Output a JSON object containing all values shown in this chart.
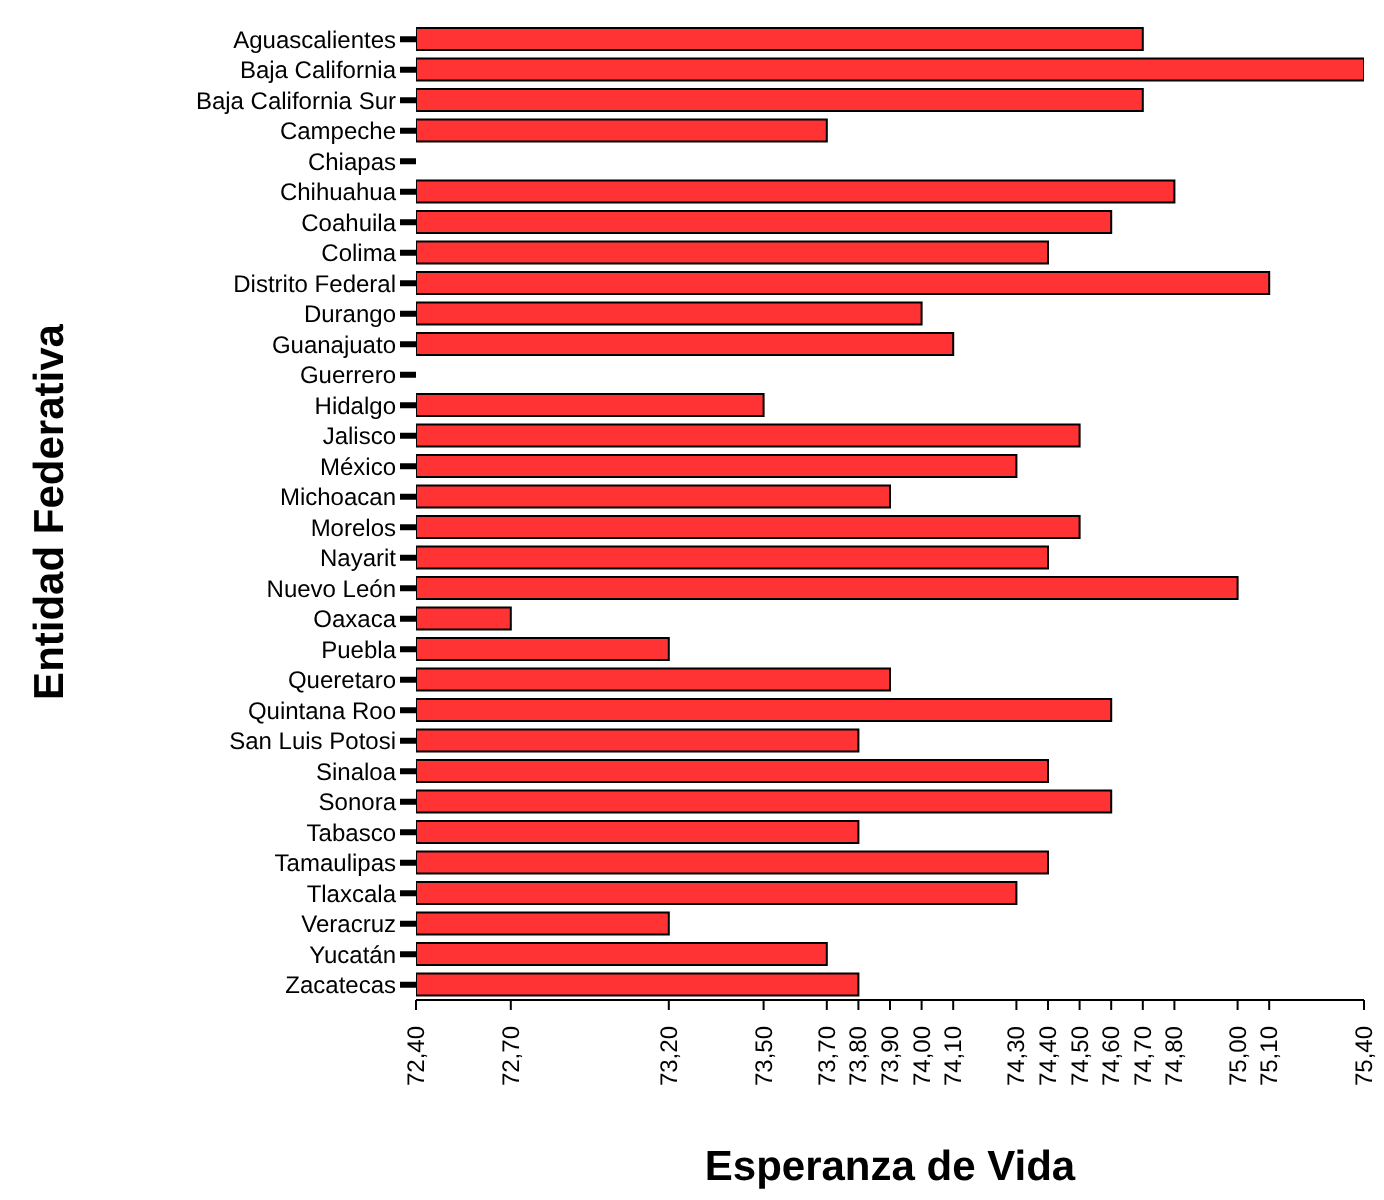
{
  "chart_data": {
    "type": "bar",
    "orientation": "horizontal",
    "xlabel": "Esperanza de Vida",
    "ylabel": "Entidad Federativa",
    "categories": [
      "Aguascalientes",
      "Baja California",
      "Baja California Sur",
      "Campeche",
      "Chiapas",
      "Chihuahua",
      "Coahuila",
      "Colima",
      "Distrito Federal",
      "Durango",
      "Guanajuato",
      "Guerrero",
      "Hidalgo",
      "Jalisco",
      "México",
      "Michoacan",
      "Morelos",
      "Nayarit",
      "Nuevo León",
      "Oaxaca",
      "Puebla",
      "Queretaro",
      "Quintana Roo",
      "San Luis Potosi",
      "Sinaloa",
      "Sonora",
      "Tabasco",
      "Tamaulipas",
      "Tlaxcala",
      "Veracruz",
      "Yucatán",
      "Zacatecas"
    ],
    "values": [
      74.7,
      75.4,
      74.7,
      73.7,
      null,
      74.8,
      74.6,
      74.4,
      75.1,
      74.0,
      74.1,
      null,
      73.5,
      74.5,
      74.3,
      73.9,
      74.5,
      74.4,
      75.0,
      72.7,
      73.2,
      73.9,
      74.6,
      73.8,
      74.4,
      74.6,
      73.8,
      74.4,
      74.3,
      73.2,
      73.7,
      73.8
    ],
    "color": "#ff3333",
    "xlim": [
      72.4,
      75.4
    ],
    "xticks": [
      {
        "value": 72.4,
        "label": "72,40"
      },
      {
        "value": 72.7,
        "label": "72,70"
      },
      {
        "value": 73.2,
        "label": "73,20"
      },
      {
        "value": 73.5,
        "label": "73,50"
      },
      {
        "value": 73.7,
        "label": "73,70"
      },
      {
        "value": 73.8,
        "label": "73,80"
      },
      {
        "value": 73.9,
        "label": "73,90"
      },
      {
        "value": 74.0,
        "label": "74,00"
      },
      {
        "value": 74.1,
        "label": "74,10"
      },
      {
        "value": 74.3,
        "label": "74,30"
      },
      {
        "value": 74.4,
        "label": "74,40"
      },
      {
        "value": 74.5,
        "label": "74,50"
      },
      {
        "value": 74.6,
        "label": "74,60"
      },
      {
        "value": 74.7,
        "label": "74,70"
      },
      {
        "value": 74.8,
        "label": "74,80"
      },
      {
        "value": 75.0,
        "label": "75,00"
      },
      {
        "value": 75.1,
        "label": "75,10"
      },
      {
        "value": 75.4,
        "label": "75,40"
      }
    ],
    "grid": false,
    "legend": false
  }
}
